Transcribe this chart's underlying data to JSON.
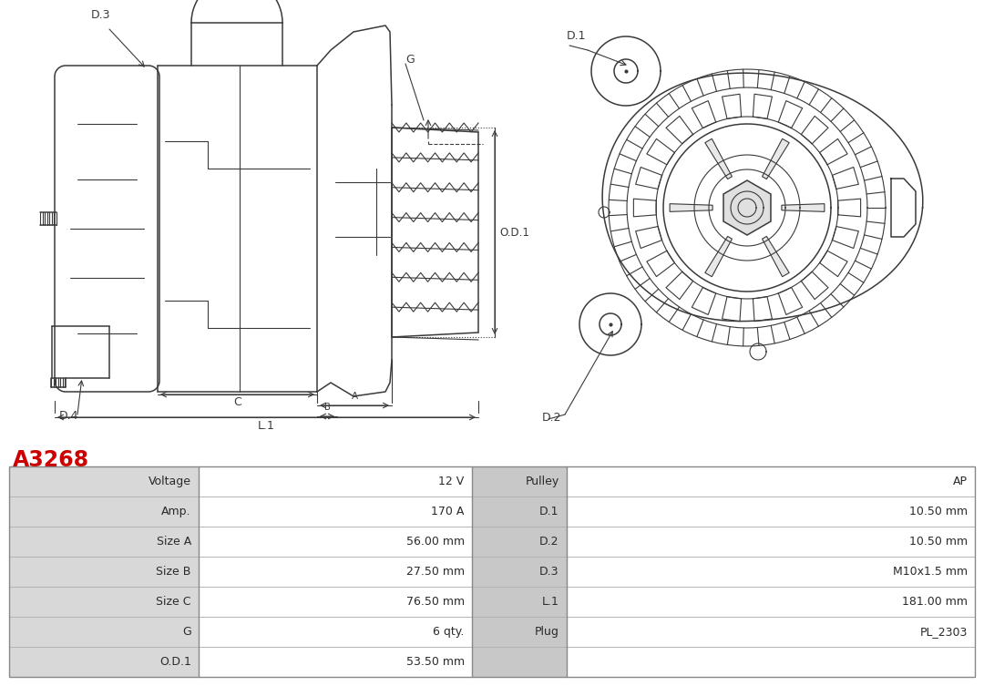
{
  "title": "A3268",
  "title_color": "#cc0000",
  "bg_color": "#ffffff",
  "table_data": [
    [
      "Voltage",
      "12 V",
      "Pulley",
      "AP"
    ],
    [
      "Amp.",
      "170 A",
      "D.1",
      "10.50 mm"
    ],
    [
      "Size A",
      "56.00 mm",
      "D.2",
      "10.50 mm"
    ],
    [
      "Size B",
      "27.50 mm",
      "D.3",
      "M10x1.5 mm"
    ],
    [
      "Size C",
      "76.50 mm",
      "L.1",
      "181.00 mm"
    ],
    [
      "G",
      "6 qty.",
      "Plug",
      "PL_2303"
    ],
    [
      "O.D.1",
      "53.50 mm",
      "",
      ""
    ]
  ],
  "line_color": "#3a3a3a",
  "dim_color": "#3a3a3a",
  "table_label_bg": "#d8d8d8",
  "table_value_bg": "#ffffff",
  "table_right_label_bg": "#c8c8c8",
  "table_right_value_bg": "#ffffff"
}
